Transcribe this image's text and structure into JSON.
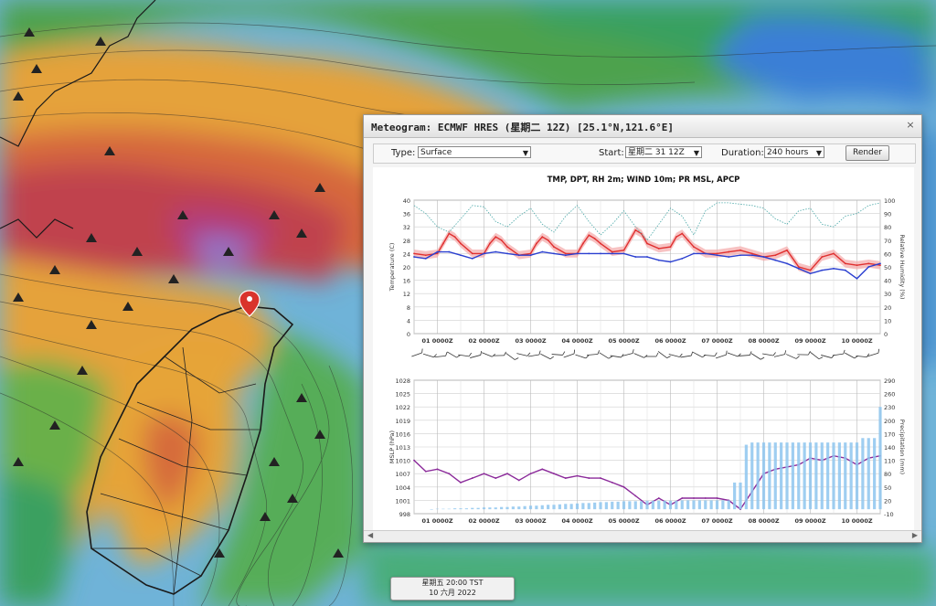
{
  "dialog": {
    "title": "Meteogram: ECMWF HRES (星期二 12Z) [25.1°N,121.6°E]",
    "close_label": "×"
  },
  "controls": {
    "type_label": "Type:",
    "type_value": "Surface",
    "start_label": "Start:",
    "start_value": "星期二 31 12Z",
    "duration_label": "Duration:",
    "duration_value": "240 hours",
    "render_label": "Render"
  },
  "chart_data": [
    {
      "type": "line",
      "title": "TMP, DPT, RH 2m; WIND 10m; PR MSL, APCP",
      "xlabel": "",
      "ylabel": "Temperature (C)",
      "ylabel_right": "Relative Humidity (%)",
      "ylim": [
        0,
        40
      ],
      "ylim_right": [
        0,
        100
      ],
      "yticks": [
        0,
        4,
        8,
        12,
        16,
        20,
        24,
        28,
        32,
        36,
        40
      ],
      "yticks_right": [
        0,
        10,
        20,
        30,
        40,
        50,
        60,
        70,
        80,
        90,
        100
      ],
      "xticks": [
        "01 0000Z",
        "02 0000Z",
        "03 0000Z",
        "04 0000Z",
        "05 0000Z",
        "06 0000Z",
        "07 0000Z",
        "08 0000Z",
        "09 0000Z",
        "10 0000Z"
      ],
      "xtick_hours": [
        12,
        36,
        60,
        84,
        108,
        132,
        156,
        180,
        204,
        228
      ],
      "x_hours_range": [
        0,
        240
      ],
      "grid": true,
      "series": [
        {
          "role": "temperature",
          "color": "#e03030",
          "axis": "left",
          "x": [
            0,
            6,
            12,
            15,
            18,
            21,
            24,
            30,
            36,
            39,
            42,
            45,
            48,
            54,
            60,
            63,
            66,
            69,
            72,
            78,
            84,
            87,
            90,
            93,
            96,
            102,
            108,
            111,
            114,
            117,
            120,
            126,
            132,
            135,
            138,
            141,
            144,
            150,
            156,
            162,
            168,
            174,
            180,
            186,
            192,
            198,
            204,
            210,
            216,
            222,
            228,
            234,
            240
          ],
          "y": [
            24,
            23.5,
            24,
            27,
            30,
            29,
            27,
            24,
            24,
            27,
            29,
            28,
            26,
            23.5,
            24,
            27,
            29,
            28,
            26,
            24,
            24,
            27,
            29.5,
            28.5,
            27,
            24.5,
            25,
            28,
            31,
            30,
            27,
            25.5,
            26,
            29,
            30,
            28,
            26,
            24,
            24,
            24.5,
            25,
            24,
            23,
            23.5,
            25,
            20,
            19,
            23,
            24,
            21,
            20.5,
            21,
            20.5
          ]
        },
        {
          "role": "dew_point",
          "color": "#2a3fd0",
          "axis": "left",
          "x": [
            0,
            6,
            12,
            18,
            24,
            30,
            36,
            42,
            48,
            54,
            60,
            66,
            72,
            78,
            84,
            90,
            96,
            102,
            108,
            114,
            120,
            126,
            132,
            138,
            144,
            150,
            156,
            162,
            168,
            174,
            180,
            186,
            192,
            198,
            204,
            210,
            216,
            222,
            228,
            234,
            240
          ],
          "y": [
            23,
            22.5,
            24.5,
            24.5,
            23.5,
            22.5,
            24,
            24.5,
            24,
            23.5,
            23.5,
            24.5,
            24,
            23.5,
            24,
            24,
            24,
            24,
            24,
            23,
            23,
            22,
            21.5,
            22.5,
            24,
            24,
            23.5,
            23,
            23.5,
            23.5,
            23,
            22,
            21,
            19.5,
            18,
            19,
            19.5,
            19,
            16.5,
            20,
            21
          ]
        },
        {
          "role": "relative_humidity",
          "color": "#4aa8a8",
          "axis": "right",
          "dashed": true,
          "x": [
            0,
            6,
            12,
            18,
            24,
            30,
            36,
            42,
            48,
            54,
            60,
            66,
            72,
            78,
            84,
            90,
            96,
            102,
            108,
            114,
            120,
            126,
            132,
            138,
            144,
            150,
            156,
            162,
            168,
            174,
            180,
            186,
            192,
            198,
            204,
            210,
            216,
            222,
            228,
            234,
            240
          ],
          "y": [
            96,
            90,
            80,
            76,
            86,
            96,
            95,
            84,
            80,
            88,
            94,
            82,
            76,
            88,
            96,
            84,
            74,
            82,
            92,
            80,
            70,
            82,
            94,
            88,
            74,
            92,
            98,
            98,
            97,
            96,
            94,
            86,
            82,
            92,
            94,
            82,
            80,
            88,
            90,
            96,
            98
          ]
        }
      ]
    },
    {
      "type": "line",
      "title": "",
      "xlabel": "",
      "ylabel": "MSLP (hPa)",
      "ylabel_right": "Precipitation (mm)",
      "ylim": [
        998,
        1028
      ],
      "ylim_right": [
        -10,
        290
      ],
      "yticks": [
        998,
        1001,
        1004,
        1007,
        1010,
        1013,
        1016,
        1019,
        1022,
        1025,
        1028
      ],
      "yticks_right": [
        -10,
        20,
        50,
        80,
        110,
        140,
        170,
        200,
        230,
        260,
        290
      ],
      "xticks": [
        "01 0000Z",
        "02 0000Z",
        "03 0000Z",
        "04 0000Z",
        "05 0000Z",
        "06 0000Z",
        "07 0000Z",
        "08 0000Z",
        "09 0000Z",
        "10 0000Z"
      ],
      "xtick_hours": [
        12,
        36,
        60,
        84,
        108,
        132,
        156,
        180,
        204,
        228
      ],
      "x_hours_range": [
        0,
        240
      ],
      "grid": true,
      "series": [
        {
          "role": "mslp",
          "color": "#8b2a9a",
          "axis": "left",
          "x": [
            0,
            6,
            12,
            18,
            24,
            30,
            36,
            42,
            48,
            54,
            60,
            66,
            72,
            78,
            84,
            90,
            96,
            102,
            108,
            114,
            120,
            126,
            132,
            138,
            144,
            150,
            156,
            162,
            168,
            174,
            180,
            186,
            192,
            198,
            204,
            210,
            216,
            222,
            228,
            234,
            240
          ],
          "y": [
            1010,
            1007.5,
            1008,
            1007,
            1005,
            1006,
            1007,
            1006,
            1007,
            1005.5,
            1007,
            1008,
            1007,
            1006,
            1006.5,
            1006,
            1006,
            1005,
            1004,
            1002,
            1000,
            1001.5,
            1000,
            1001.5,
            1001.5,
            1001.5,
            1001.5,
            1001,
            999,
            1003,
            1007,
            1008,
            1008.5,
            1009,
            1010.5,
            1010,
            1011,
            1010.5,
            1009,
            1010.5,
            1011
          ]
        },
        {
          "role": "precipitation",
          "color": "#8ec5ef",
          "axis": "right",
          "kind": "bar",
          "x": [
            9,
            12,
            15,
            18,
            21,
            24,
            27,
            30,
            33,
            36,
            39,
            42,
            45,
            48,
            51,
            54,
            57,
            60,
            63,
            66,
            69,
            72,
            75,
            78,
            81,
            84,
            87,
            90,
            93,
            96,
            99,
            102,
            105,
            108,
            111,
            114,
            117,
            120,
            123,
            126,
            129,
            132,
            135,
            138,
            141,
            144,
            147,
            150,
            153,
            156,
            159,
            162,
            165,
            168,
            171,
            174,
            177,
            180,
            183,
            186,
            189,
            192,
            195,
            198,
            201,
            204,
            207,
            210,
            213,
            216,
            219,
            222,
            225,
            228,
            231,
            234,
            237,
            240
          ],
          "y": [
            0,
            1,
            1,
            1,
            2,
            2,
            2,
            3,
            3,
            4,
            4,
            4,
            5,
            5,
            6,
            6,
            7,
            8,
            8,
            9,
            10,
            10,
            11,
            12,
            12,
            13,
            14,
            14,
            15,
            16,
            16,
            17,
            17,
            18,
            18,
            18,
            18,
            19,
            19,
            19,
            19,
            19,
            19,
            20,
            20,
            20,
            20,
            20,
            20,
            20,
            20,
            20,
            60,
            60,
            145,
            150,
            150,
            150,
            150,
            150,
            150,
            150,
            150,
            150,
            150,
            150,
            150,
            150,
            150,
            150,
            150,
            150,
            150,
            150,
            160,
            160,
            160,
            230
          ]
        }
      ]
    }
  ],
  "timebox": {
    "line1": "星期五 20:00 TST",
    "line2": "10 六月 2022"
  },
  "icons": {
    "close": "close-icon",
    "next": "chevron-right-icon",
    "marker": "location-pin-icon"
  },
  "colors": {
    "temperature_band": "#f4a8a8",
    "marker": "#d9342b"
  }
}
